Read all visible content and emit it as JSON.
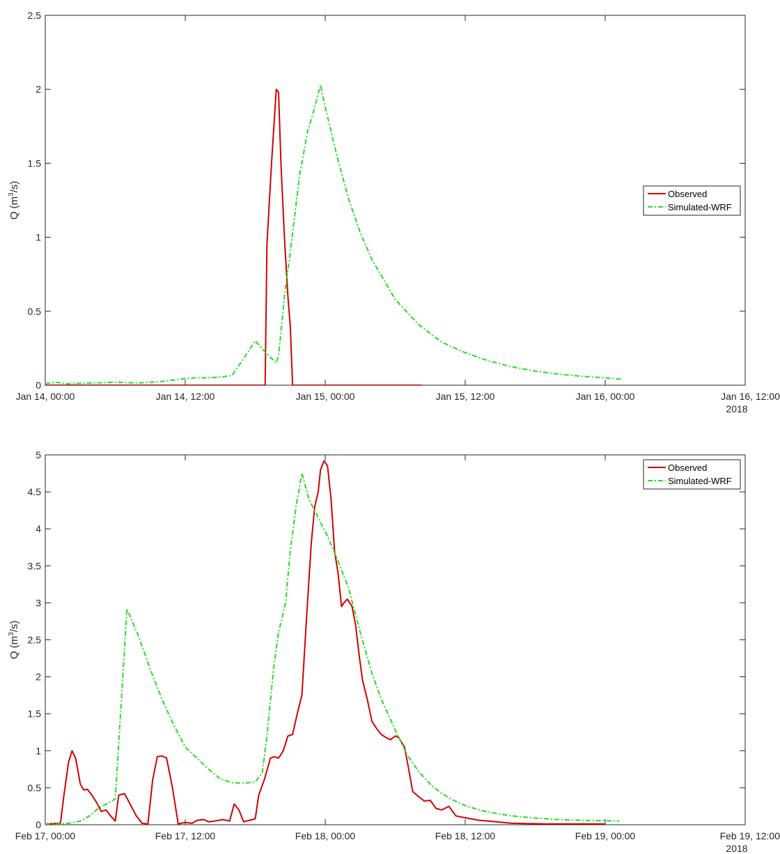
{
  "chart_data": [
    {
      "type": "line",
      "xlabel": "",
      "ylabel": "Q (m",
      "ylabel_sup": "3",
      "ylabel_tail": "/s)",
      "x_unit": "hours since Jan 14, 00:00",
      "xlim": [
        0,
        60
      ],
      "ylim": [
        0,
        2.5
      ],
      "x_ticks": [
        {
          "x": 0,
          "label": "Jan 14, 00:00"
        },
        {
          "x": 12,
          "label": "Jan 14, 12:00"
        },
        {
          "x": 24,
          "label": "Jan 15, 00:00"
        },
        {
          "x": 36,
          "label": "Jan 15, 12:00"
        },
        {
          "x": 48,
          "label": "Jan 16, 00:00"
        },
        {
          "x": 60,
          "label": "Jan 16, 12:00"
        }
      ],
      "x_year_label": "2018",
      "y_ticks": [
        0,
        0.5,
        1,
        1.5,
        2,
        2.5
      ],
      "y_tick_labels": [
        "0",
        "0.5",
        "1",
        "1.5",
        "2",
        "2.5"
      ],
      "legend_position": "right-middle",
      "colors": {
        "observed": "#d40000",
        "simulated": "#22dd22"
      },
      "series": [
        {
          "name": "Observed",
          "style": "solid",
          "color": "#d40000",
          "x": [
            0,
            18.85,
            19.0,
            19.4,
            19.8,
            20.0,
            20.2,
            20.5,
            20.8,
            21.0,
            21.2,
            22,
            32.3
          ],
          "y": [
            0,
            0,
            0.95,
            1.5,
            2.0,
            1.98,
            1.5,
            1.0,
            0.6,
            0.4,
            0,
            0,
            0
          ]
        },
        {
          "name": "Simulated-WRF",
          "style": "dashdot",
          "color": "#22dd22",
          "x": [
            0,
            0.8,
            2,
            4,
            6,
            8,
            10,
            12,
            13,
            14,
            15,
            16,
            17,
            18,
            18.9,
            19.8,
            20,
            20.5,
            21,
            21.8,
            22.5,
            23,
            23.6,
            24,
            25,
            26,
            27,
            28,
            30,
            32,
            34,
            36,
            38,
            40,
            42,
            44,
            46,
            48,
            49.4
          ],
          "y": [
            0.01,
            0.02,
            0.01,
            0.015,
            0.02,
            0.015,
            0.025,
            0.045,
            0.05,
            0.05,
            0.055,
            0.065,
            0.18,
            0.3,
            0.22,
            0.15,
            0.2,
            0.6,
            0.9,
            1.42,
            1.72,
            1.85,
            2.03,
            1.88,
            1.55,
            1.26,
            1.03,
            0.85,
            0.58,
            0.41,
            0.29,
            0.22,
            0.165,
            0.125,
            0.095,
            0.075,
            0.06,
            0.05,
            0.04
          ]
        }
      ]
    },
    {
      "type": "line",
      "xlabel": "",
      "ylabel": "Q (m",
      "ylabel_sup": "3",
      "ylabel_tail": "/s)",
      "x_unit": "hours since Feb 17, 00:00",
      "xlim": [
        0,
        60
      ],
      "ylim": [
        0,
        5
      ],
      "x_ticks": [
        {
          "x": 0,
          "label": "Feb 17, 00:00"
        },
        {
          "x": 12,
          "label": "Feb 17, 12:00"
        },
        {
          "x": 24,
          "label": "Feb 18, 00:00"
        },
        {
          "x": 36,
          "label": "Feb 18, 12:00"
        },
        {
          "x": 48,
          "label": "Feb 19, 00:00"
        },
        {
          "x": 60,
          "label": "Feb 19, 12:00"
        }
      ],
      "x_year_label": "2018",
      "y_ticks": [
        0,
        0.5,
        1,
        1.5,
        2,
        2.5,
        3,
        3.5,
        4,
        4.5,
        5
      ],
      "y_tick_labels": [
        "0",
        "0.5",
        "1",
        "1.5",
        "2",
        "2.5",
        "3",
        "3.5",
        "4",
        "4.5",
        "5"
      ],
      "legend_position": "top-right",
      "colors": {
        "observed": "#d40000",
        "simulated": "#22dd22"
      },
      "series": [
        {
          "name": "Observed",
          "style": "solid",
          "color": "#d40000",
          "x": [
            0,
            1.3,
            1.6,
            2.0,
            2.3,
            2.6,
            3.0,
            3.3,
            3.6,
            4.0,
            4.4,
            4.8,
            5.2,
            5.6,
            6.0,
            6.3,
            6.8,
            7.2,
            7.8,
            8.3,
            8.8,
            9.2,
            9.6,
            10.0,
            10.4,
            10.9,
            11.4,
            11.6,
            12.0,
            12.6,
            13.0,
            13.6,
            14.0,
            14.5,
            15.2,
            15.8,
            16.2,
            16.6,
            17.0,
            17.5,
            18.0,
            18.3,
            18.8,
            19.3,
            19.6,
            20.0,
            20.4,
            20.8,
            21.2,
            21.6,
            22.0,
            22.4,
            22.8,
            23.1,
            23.4,
            23.6,
            23.9,
            24.2,
            24.5,
            24.8,
            25.1,
            25.4,
            25.6,
            25.9,
            26.3,
            26.6,
            26.9,
            27.2,
            27.6,
            28.0,
            28.4,
            28.8,
            29.2,
            29.6,
            30.0,
            30.3,
            30.6,
            30.8,
            31.1,
            31.5,
            32.0,
            32.5,
            33.0,
            33.5,
            34.0,
            34.6,
            35.2,
            35.8,
            36.5,
            37.2,
            38,
            40,
            43,
            46,
            48.0
          ],
          "y": [
            0.01,
            0.02,
            0.4,
            0.85,
            1.0,
            0.9,
            0.55,
            0.47,
            0.48,
            0.4,
            0.3,
            0.18,
            0.2,
            0.12,
            0.05,
            0.4,
            0.42,
            0.3,
            0.12,
            0.02,
            0.01,
            0.6,
            0.92,
            0.93,
            0.9,
            0.5,
            0.01,
            0.02,
            0.03,
            0.02,
            0.06,
            0.07,
            0.04,
            0.05,
            0.07,
            0.05,
            0.28,
            0.2,
            0.04,
            0.06,
            0.08,
            0.4,
            0.62,
            0.9,
            0.92,
            0.9,
            1.0,
            1.2,
            1.22,
            1.5,
            1.75,
            2.8,
            3.8,
            4.3,
            4.5,
            4.8,
            4.92,
            4.85,
            4.4,
            3.7,
            3.4,
            2.95,
            3.0,
            3.05,
            2.95,
            2.7,
            2.3,
            1.95,
            1.7,
            1.4,
            1.3,
            1.22,
            1.18,
            1.15,
            1.2,
            1.18,
            1.1,
            1.05,
            0.8,
            0.45,
            0.38,
            0.32,
            0.33,
            0.22,
            0.2,
            0.25,
            0.12,
            0.1,
            0.08,
            0.06,
            0.05,
            0.02,
            0.01,
            0.01,
            0.01
          ]
        },
        {
          "name": "Simulated-WRF",
          "style": "dashdot",
          "color": "#22dd22",
          "x": [
            0,
            1.0,
            2.0,
            3.0,
            3.8,
            4.6,
            5.5,
            6.0,
            7.0,
            8.0,
            9.0,
            10.0,
            11.0,
            12.0,
            13.0,
            14.0,
            15.0,
            16.0,
            17.0,
            18.0,
            18.6,
            19.0,
            19.6,
            20.0,
            20.6,
            21.0,
            21.5,
            22.0,
            22.6,
            24.2,
            25.0,
            26.0,
            27.0,
            28.0,
            28.8,
            30.0,
            31.0,
            32.0,
            33.0,
            34.0,
            35.0,
            36.0,
            37.0,
            38.0,
            40.0,
            42.0,
            44.0,
            46.0,
            49.2
          ],
          "y": [
            0.01,
            0.01,
            0.02,
            0.05,
            0.12,
            0.23,
            0.3,
            0.35,
            2.92,
            2.55,
            2.1,
            1.7,
            1.35,
            1.05,
            0.9,
            0.75,
            0.62,
            0.57,
            0.56,
            0.58,
            0.7,
            1.2,
            2.15,
            2.6,
            3.0,
            3.7,
            4.3,
            4.75,
            4.4,
            3.9,
            3.6,
            3.2,
            2.6,
            2.05,
            1.7,
            1.28,
            0.95,
            0.72,
            0.55,
            0.42,
            0.33,
            0.26,
            0.21,
            0.17,
            0.12,
            0.09,
            0.07,
            0.06,
            0.05
          ]
        }
      ]
    }
  ]
}
